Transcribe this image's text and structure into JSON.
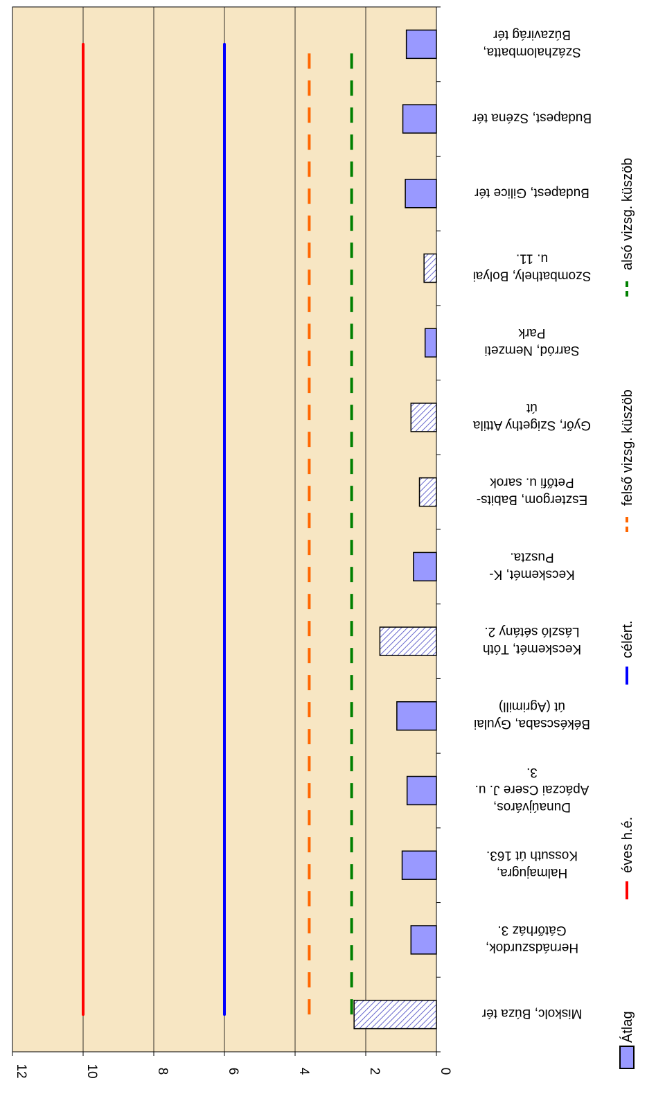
{
  "chart_data": {
    "type": "bar",
    "orientation": "rotated-180-vertical-value-axis",
    "categories": [
      [
        "Miskolc, Búza tér"
      ],
      [
        "Hernádszurdok,",
        "Gátőrház 3."
      ],
      [
        "Halmajugra,",
        "Kossuth út 163."
      ],
      [
        "Dunaújváros,",
        "Apáczai Csere J. u.",
        "3."
      ],
      [
        "Békéscsaba, Gyulai",
        "út (Agrimill)"
      ],
      [
        "Kecskemét, Tóth",
        "László sétány 2."
      ],
      [
        "Kecskemét, K-",
        "Puszta."
      ],
      [
        "Esztergom, Babits-",
        "Petőfi u. sarok"
      ],
      [
        "Győr, Szigethy Attila",
        "út"
      ],
      [
        "Sarród, Nemzeti",
        "Park"
      ],
      [
        "Szombathely, Bolyai",
        "u. 11."
      ],
      [
        "Budapest, Gilice tér"
      ],
      [
        "Budapest, Széna tér"
      ],
      [
        "Százhalombatta,",
        "Búzavirág tér"
      ]
    ],
    "series": [
      {
        "name": "Átlag",
        "type": "bar",
        "values": [
          2.33,
          0.72,
          0.97,
          0.83,
          1.12,
          1.6,
          0.65,
          0.48,
          0.72,
          0.32,
          0.35,
          0.88,
          0.95,
          0.85
        ],
        "hatched": [
          true,
          false,
          false,
          false,
          false,
          true,
          false,
          true,
          true,
          false,
          true,
          false,
          false,
          false
        ]
      },
      {
        "name": "éves h.é.",
        "type": "line",
        "value": 10,
        "color": "#ff0000",
        "dash": "solid"
      },
      {
        "name": "célért.",
        "type": "line",
        "value": 6,
        "color": "#0000ff",
        "dash": "solid"
      },
      {
        "name": "felső vizsg. küszöb",
        "type": "line",
        "value": 3.6,
        "color": "#ff6600",
        "dash": "dashed"
      },
      {
        "name": "alsó vizsg. küszöb",
        "type": "line",
        "value": 2.4,
        "color": "#008000",
        "dash": "dashed"
      }
    ],
    "ylim": [
      0,
      12
    ],
    "yticks": [
      "0",
      "2",
      "4",
      "6",
      "8",
      "10",
      "12"
    ],
    "grid": true,
    "legend_position": "bottom",
    "colors": {
      "bar_fill": "#9999ff",
      "plot_bg": "#f7e6c3",
      "gridline": "#000000"
    }
  }
}
